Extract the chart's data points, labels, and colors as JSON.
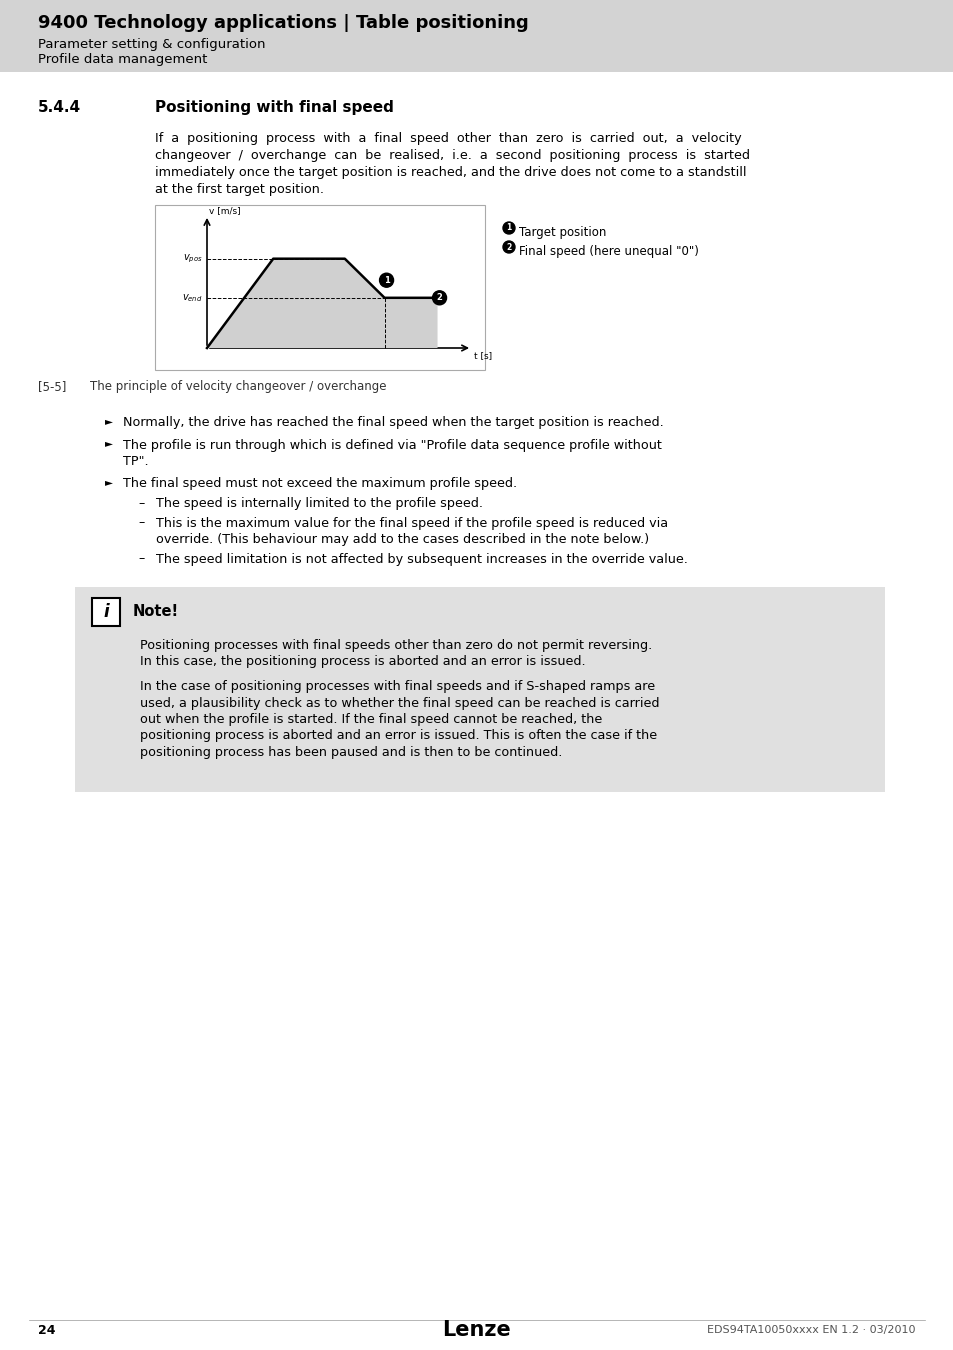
{
  "page_bg": "#ffffff",
  "header_bg": "#d3d3d3",
  "header_title": "9400 Technology applications | Table positioning",
  "header_sub1": "Parameter setting & configuration",
  "header_sub2": "Profile data management",
  "section_num": "5.4.4",
  "section_title": "Positioning with final speed",
  "body_line1": "If  a  positioning  process  with  a  final  speed  other  than  zero  is  carried  out,  a  velocity",
  "body_line2": "changeover  /  overchange  can  be  realised,  i.e.  a  second  positioning  process  is  started",
  "body_line3": "immediately once the target position is reached, and the drive does not come to a standstill",
  "body_line4": "at the first target position.",
  "fig_caption_num": "[5-5]",
  "fig_caption_text": "The principle of velocity changeover / overchange",
  "legend1_num": "1",
  "legend1_text": " Target position",
  "legend2_num": "2",
  "legend2_text": " Final speed (here unequal \"0\")",
  "bullet1": "Normally, the drive has reached the final speed when the target position is reached.",
  "bullet2a": "The profile is run through which is defined via \"Profile data sequence profile without",
  "bullet2b": "TP\".",
  "bullet3": "The final speed must not exceed the maximum profile speed.",
  "sub1": "The speed is internally limited to the profile speed.",
  "sub2a": "This is the maximum value for the final speed if the profile speed is reduced via",
  "sub2b": "override. (This behaviour may add to the cases described in the note below.)",
  "sub3": "The speed limitation is not affected by subsequent increases in the override value.",
  "note_title": "Note!",
  "note_p1a": "Positioning processes with final speeds other than zero do not permit reversing.",
  "note_p1b": "In this case, the positioning process is aborted and an error is issued.",
  "note_p2a": "In the case of positioning processes with final speeds and if S-shaped ramps are",
  "note_p2b": "used, a plausibility check as to whether the final speed can be reached is carried",
  "note_p2c": "out when the profile is started. If the final speed cannot be reached, the",
  "note_p2d": "positioning process is aborted and an error is issued. This is often the case if the",
  "note_p2e": "positioning process has been paused and is then to be continued.",
  "footer_page": "24",
  "footer_company": "Lenze",
  "footer_doc": "EDS94TA10050xxxx EN 1.2 · 03/2010",
  "note_bg": "#e0e0e0",
  "chart_fill": "#d0d0d0"
}
